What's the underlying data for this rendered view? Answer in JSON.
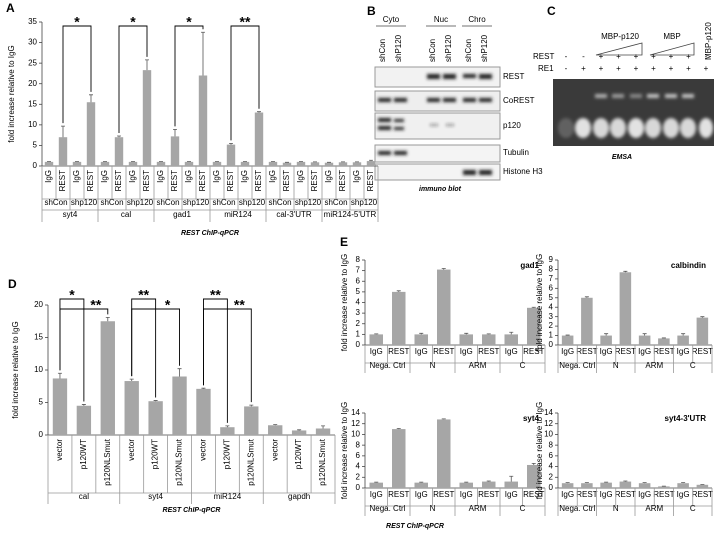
{
  "panel_labels": [
    "A",
    "B",
    "C",
    "D",
    "E"
  ],
  "chart_data": [
    {
      "type": "bar",
      "ylabel": "fold increase relative to IgG",
      "xlabel": "REST ChIP-qPCR",
      "categories": [
        "IgG",
        "REST",
        "IgG",
        "REST",
        "IgG",
        "REST",
        "IgG",
        "REST",
        "IgG",
        "REST",
        "IgG",
        "REST",
        "IgG",
        "REST",
        "IgG",
        "REST",
        "IgG",
        "REST",
        "IgG",
        "REST",
        "IgG",
        "REST",
        "IgG",
        "REST"
      ],
      "subgroups": [
        "shCon",
        "shp120",
        "shCon",
        "shp120",
        "shCon",
        "shp120",
        "shCon",
        "shp120",
        "shCon",
        "shp120",
        "shCon",
        "shp120"
      ],
      "groups": [
        "syt4",
        "cal",
        "gad1",
        "miR124",
        "cal-3'UTR",
        "miR124-5'UTR"
      ],
      "values": [
        1,
        7,
        1,
        15.5,
        1,
        7,
        1,
        23.3,
        1,
        7.2,
        1,
        22,
        1,
        5.2,
        1,
        13,
        1,
        0.8,
        1,
        0.9,
        0.8,
        0.9,
        0.9,
        1.2
      ],
      "errors": [
        0.1,
        2.7,
        0.1,
        1.8,
        0.1,
        0.3,
        0.1,
        2.5,
        0.1,
        1.7,
        0.1,
        10.5,
        0.1,
        0.3,
        0.1,
        0.2,
        0.1,
        0.1,
        0.1,
        0.1,
        0.1,
        0.1,
        0.1,
        0.2
      ],
      "significance": [
        "*",
        "*",
        "*",
        "**",
        null,
        null
      ],
      "ylim": [
        0,
        35
      ],
      "yticks": [
        0,
        5,
        10,
        15,
        20,
        25,
        30,
        35
      ],
      "color": "#a6a6a6"
    },
    {
      "type": "bar",
      "ylabel": "fold increase relative to IgG",
      "xlabel": "REST ChIP-qPCR",
      "categories": [
        "vector",
        "p120WT",
        "p120NLSmut",
        "vector",
        "p120WT",
        "p120NLSmut",
        "vector",
        "p120WT",
        "p120NLSmut",
        "vector",
        "p120WT",
        "p120NLSmut"
      ],
      "groups": [
        "cal",
        "syt4",
        "miR124",
        "gapdh"
      ],
      "values": [
        8.7,
        4.5,
        17.5,
        8.3,
        5.2,
        9,
        7.1,
        1.2,
        4.4,
        1.5,
        0.7,
        1
      ],
      "errors": [
        0.8,
        0.2,
        0.6,
        0.3,
        0.1,
        1.2,
        0.1,
        0.2,
        0.2,
        0.1,
        0.1,
        0.4
      ],
      "significance": [
        [
          "*",
          "**"
        ],
        [
          "**",
          "*"
        ],
        [
          "**",
          "**"
        ],
        [
          null,
          null
        ]
      ],
      "ylim": [
        0,
        20
      ],
      "yticks": [
        0,
        5,
        10,
        15,
        20
      ],
      "color": "#a6a6a6"
    },
    {
      "type": "bar",
      "title": "gad1",
      "ylabel": "fold increase relative to IgG",
      "categories": [
        "IgG",
        "REST",
        "IgG",
        "REST",
        "IgG",
        "REST",
        "IgG",
        "REST"
      ],
      "groups": [
        "Nega. Ctrl",
        "N",
        "ARM",
        "C"
      ],
      "values": [
        1,
        5,
        1,
        7.1,
        1,
        1,
        1,
        3.5
      ],
      "errors": [
        0.05,
        0.1,
        0.1,
        0.1,
        0.1,
        0.05,
        0.2,
        0.05
      ],
      "ylim": [
        0,
        8
      ],
      "yticks": [
        0,
        1,
        2,
        3,
        4,
        5,
        6,
        7,
        8
      ],
      "color": "#a6a6a6"
    },
    {
      "type": "bar",
      "title": "calbindin",
      "ylabel": "fold increase relative to IgG",
      "categories": [
        "IgG",
        "REST",
        "IgG",
        "REST",
        "IgG",
        "REST",
        "IgG",
        "REST"
      ],
      "groups": [
        "Nega. Ctrl",
        "N",
        "ARM",
        "C"
      ],
      "values": [
        1,
        5,
        1,
        7.7,
        1,
        0.7,
        1,
        2.9
      ],
      "errors": [
        0.05,
        0.1,
        0.2,
        0.1,
        0.2,
        0.05,
        0.2,
        0.1
      ],
      "ylim": [
        0,
        9
      ],
      "yticks": [
        0,
        1,
        2,
        3,
        4,
        5,
        6,
        7,
        8,
        9
      ],
      "color": "#a6a6a6"
    },
    {
      "type": "bar",
      "title": "syt4",
      "ylabel": "fold increase relative to IgG",
      "categories": [
        "IgG",
        "REST",
        "IgG",
        "REST",
        "IgG",
        "REST",
        "IgG",
        "REST"
      ],
      "groups": [
        "Nega. Ctrl",
        "N",
        "ARM",
        "C"
      ],
      "values": [
        1,
        11,
        1,
        12.8,
        1,
        1.2,
        1.2,
        4.3
      ],
      "errors": [
        0.1,
        0.1,
        0.1,
        0.1,
        0.1,
        0.1,
        1,
        0.3
      ],
      "ylim": [
        0,
        14
      ],
      "yticks": [
        0,
        2,
        4,
        6,
        8,
        10,
        12,
        14
      ],
      "color": "#a6a6a6"
    },
    {
      "type": "bar",
      "title": "syt4-3'UTR",
      "ylabel": "fold increase relative to IgG",
      "categories": [
        "IgG",
        "REST",
        "IgG",
        "REST",
        "IgG",
        "REST",
        "IgG",
        "REST"
      ],
      "groups": [
        "Nega. Ctrl",
        "N",
        "ARM",
        "C"
      ],
      "values": [
        0.9,
        0.9,
        1,
        1.2,
        0.9,
        0.3,
        0.9,
        0.6
      ],
      "errors": [
        0.1,
        0.1,
        0.1,
        0.1,
        0.1,
        0.05,
        0.1,
        0.05
      ],
      "ylim": [
        0,
        14
      ],
      "yticks": [
        0,
        2,
        4,
        6,
        8,
        10,
        12,
        14
      ],
      "color": "#a6a6a6"
    }
  ],
  "figure_e": {
    "xlabel": "REST ChIP-qPCR"
  },
  "blot": {
    "fractions": [
      "Cyto",
      "Nuc",
      "Chro"
    ],
    "lanes": [
      "shCon",
      "shP120",
      "shCon",
      "shP120",
      "shCon",
      "shP120"
    ],
    "proteins": [
      "REST",
      "CoREST",
      "p120",
      "Tubulin",
      "Histone H3"
    ],
    "caption": "immuno blot"
  },
  "emsa": {
    "headers": [
      "MBP-p120",
      "MBP",
      "MBP-p120"
    ],
    "rows": [
      {
        "label": "REST",
        "signs": [
          "-",
          "-",
          "+",
          "+",
          "+",
          "+",
          "+",
          "+",
          "-"
        ]
      },
      {
        "label": "RE1",
        "signs": [
          "-",
          "+",
          "+",
          "+",
          "+",
          "+",
          "+",
          "+",
          "+"
        ]
      }
    ],
    "caption": "EMSA"
  }
}
